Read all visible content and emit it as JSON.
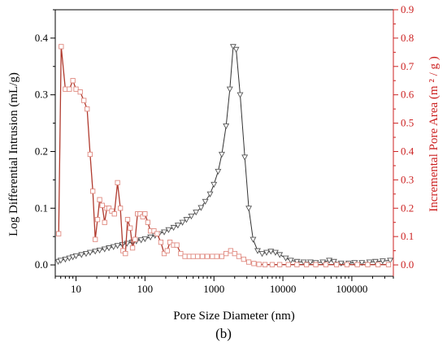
{
  "chart_data": {
    "type": "line",
    "xlabel": "Pore Size Diameter (nm)",
    "ylabel_left": "Log Differential Intrusion (mL/g)",
    "ylabel_right": "Incremental Pore Area (m ² / g )",
    "panel_label": "(b)",
    "x_scale": "log",
    "xlim": [
      5,
      400000
    ],
    "ylim_left": [
      -0.02,
      0.45
    ],
    "ylim_right": [
      -0.04,
      0.9
    ],
    "x_tick_values": [
      10,
      100,
      1000,
      10000,
      100000
    ],
    "x_tick_labels": [
      "10",
      "100",
      "1000",
      "10000",
      "100000"
    ],
    "y_left_tick_values": [
      0.0,
      0.1,
      0.2,
      0.3,
      0.4
    ],
    "y_left_tick_labels": [
      "0.0",
      "0.1",
      "0.2",
      "0.3",
      "0.4"
    ],
    "y_right_tick_values": [
      0.0,
      0.1,
      0.2,
      0.3,
      0.4,
      0.5,
      0.6,
      0.7,
      0.8,
      0.9
    ],
    "y_right_tick_labels": [
      "0.0",
      "0.1",
      "0.2",
      "0.3",
      "0.4",
      "0.5",
      "0.6",
      "0.7",
      "0.8",
      "0.9"
    ],
    "colors": {
      "left_axis": "#000000",
      "right_axis": "#cc2222",
      "series1": "#333333",
      "series2": "#b03a2e",
      "series2_marker": "#e08a80"
    },
    "series": [
      {
        "axis": "left",
        "marker": "triangle-down",
        "points": [
          [
            5.5,
            0.006
          ],
          [
            6,
            0.008
          ],
          [
            7,
            0.01
          ],
          [
            8,
            0.012
          ],
          [
            9,
            0.014
          ],
          [
            10,
            0.016
          ],
          [
            12,
            0.018
          ],
          [
            14,
            0.02
          ],
          [
            16,
            0.022
          ],
          [
            19,
            0.024
          ],
          [
            22,
            0.026
          ],
          [
            26,
            0.028
          ],
          [
            30,
            0.03
          ],
          [
            35,
            0.032
          ],
          [
            40,
            0.034
          ],
          [
            47,
            0.036
          ],
          [
            55,
            0.038
          ],
          [
            65,
            0.04
          ],
          [
            75,
            0.042
          ],
          [
            88,
            0.044
          ],
          [
            100,
            0.046
          ],
          [
            120,
            0.049
          ],
          [
            140,
            0.052
          ],
          [
            160,
            0.055
          ],
          [
            190,
            0.058
          ],
          [
            220,
            0.062
          ],
          [
            260,
            0.066
          ],
          [
            300,
            0.07
          ],
          [
            350,
            0.075
          ],
          [
            400,
            0.08
          ],
          [
            470,
            0.086
          ],
          [
            550,
            0.093
          ],
          [
            650,
            0.101
          ],
          [
            750,
            0.112
          ],
          [
            880,
            0.125
          ],
          [
            1000,
            0.142
          ],
          [
            1150,
            0.165
          ],
          [
            1300,
            0.195
          ],
          [
            1500,
            0.245
          ],
          [
            1700,
            0.31
          ],
          [
            1900,
            0.385
          ],
          [
            2100,
            0.38
          ],
          [
            2400,
            0.3
          ],
          [
            2800,
            0.19
          ],
          [
            3200,
            0.1
          ],
          [
            3700,
            0.045
          ],
          [
            4300,
            0.025
          ],
          [
            5000,
            0.02
          ],
          [
            5800,
            0.022
          ],
          [
            6700,
            0.024
          ],
          [
            7800,
            0.022
          ],
          [
            9000,
            0.018
          ],
          [
            11000,
            0.012
          ],
          [
            13000,
            0.008
          ],
          [
            16000,
            0.006
          ],
          [
            20000,
            0.005
          ],
          [
            25000,
            0.005
          ],
          [
            30000,
            0.004
          ],
          [
            38000,
            0.005
          ],
          [
            47000,
            0.008
          ],
          [
            55000,
            0.006
          ],
          [
            70000,
            0.003
          ],
          [
            90000,
            0.003
          ],
          [
            110000,
            0.004
          ],
          [
            140000,
            0.004
          ],
          [
            180000,
            0.005
          ],
          [
            220000,
            0.006
          ],
          [
            280000,
            0.007
          ],
          [
            360000,
            0.008
          ]
        ]
      },
      {
        "axis": "right",
        "marker": "square",
        "points": [
          [
            5.6,
            0.11
          ],
          [
            6.1,
            0.77
          ],
          [
            7,
            0.62
          ],
          [
            8,
            0.62
          ],
          [
            9,
            0.65
          ],
          [
            10,
            0.62
          ],
          [
            11.5,
            0.61
          ],
          [
            13,
            0.58
          ],
          [
            14.5,
            0.55
          ],
          [
            16,
            0.39
          ],
          [
            17.5,
            0.26
          ],
          [
            19,
            0.09
          ],
          [
            20.5,
            0.16
          ],
          [
            22,
            0.23
          ],
          [
            24,
            0.21
          ],
          [
            26,
            0.15
          ],
          [
            28,
            0.2
          ],
          [
            30,
            0.2
          ],
          [
            33,
            0.19
          ],
          [
            36,
            0.18
          ],
          [
            40,
            0.29
          ],
          [
            44,
            0.2
          ],
          [
            48,
            0.05
          ],
          [
            52,
            0.04
          ],
          [
            56,
            0.16
          ],
          [
            61,
            0.13
          ],
          [
            66,
            0.06
          ],
          [
            72,
            0.09
          ],
          [
            78,
            0.18
          ],
          [
            85,
            0.18
          ],
          [
            93,
            0.17
          ],
          [
            100,
            0.18
          ],
          [
            110,
            0.15
          ],
          [
            120,
            0.12
          ],
          [
            135,
            0.12
          ],
          [
            150,
            0.11
          ],
          [
            170,
            0.08
          ],
          [
            190,
            0.04
          ],
          [
            210,
            0.05
          ],
          [
            230,
            0.08
          ],
          [
            260,
            0.07
          ],
          [
            290,
            0.07
          ],
          [
            330,
            0.04
          ],
          [
            380,
            0.03
          ],
          [
            440,
            0.03
          ],
          [
            500,
            0.03
          ],
          [
            580,
            0.03
          ],
          [
            680,
            0.03
          ],
          [
            800,
            0.03
          ],
          [
            950,
            0.03
          ],
          [
            1100,
            0.03
          ],
          [
            1300,
            0.03
          ],
          [
            1500,
            0.04
          ],
          [
            1750,
            0.05
          ],
          [
            2000,
            0.04
          ],
          [
            2300,
            0.03
          ],
          [
            2700,
            0.02
          ],
          [
            3200,
            0.01
          ],
          [
            3800,
            0.005
          ],
          [
            4500,
            0.002
          ],
          [
            5500,
            0.001
          ],
          [
            7000,
            0.001
          ],
          [
            9000,
            0.001
          ],
          [
            12000,
            0.001
          ],
          [
            16000,
            0.001
          ],
          [
            22000,
            0.001
          ],
          [
            30000,
            0.001
          ],
          [
            42000,
            0.001
          ],
          [
            60000,
            0.001
          ],
          [
            85000,
            0.001
          ],
          [
            120000,
            0.001
          ],
          [
            170000,
            0.001
          ],
          [
            240000,
            0.001
          ],
          [
            340000,
            0.001
          ]
        ]
      }
    ]
  }
}
